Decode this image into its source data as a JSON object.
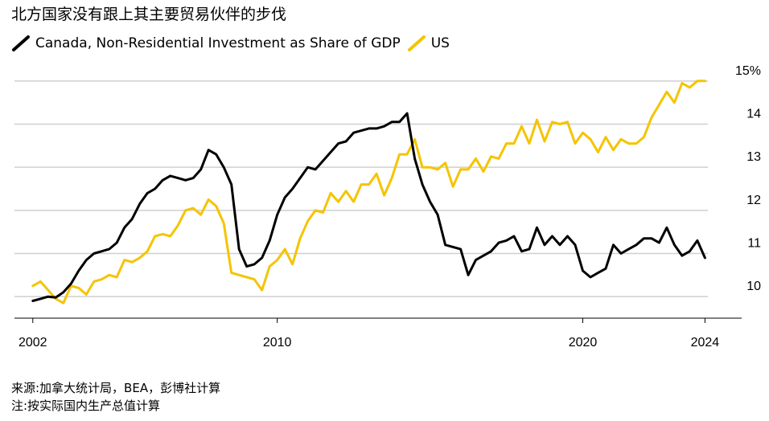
{
  "title": "北方国家没有跟上其主要贸易伙伴的步伐",
  "source": "来源:加拿大统计局，BEA，彭博社计算",
  "note": "注:按实际国内生产总值计算",
  "colors": {
    "canada": "#000000",
    "us": "#f5c400",
    "grid": "#cfcfcf",
    "axis": "#000000"
  },
  "chart_data": {
    "type": "line",
    "ylim": [
      9.5,
      15.5
    ],
    "xlim": [
      2001.4,
      2025.2
    ],
    "y_ticks": [
      {
        "value": 15,
        "label": "15%"
      },
      {
        "value": 14,
        "label": "14"
      },
      {
        "value": 13,
        "label": "13"
      },
      {
        "value": 12,
        "label": "12"
      },
      {
        "value": 11,
        "label": "11"
      },
      {
        "value": 10,
        "label": "10"
      }
    ],
    "x_ticks": [
      {
        "value": 2002,
        "label": "2002"
      },
      {
        "value": 2010,
        "label": "2010"
      },
      {
        "value": 2020,
        "label": "2020"
      },
      {
        "value": 2024,
        "label": "2024"
      }
    ],
    "series": [
      {
        "name": "Canada, Non-Residential Investment as Share of GDP",
        "color": "#000000",
        "x": [
          2002.0,
          2002.25,
          2002.5,
          2002.75,
          2003.0,
          2003.25,
          2003.5,
          2003.75,
          2004.0,
          2004.25,
          2004.5,
          2004.75,
          2005.0,
          2005.25,
          2005.5,
          2005.75,
          2006.0,
          2006.25,
          2006.5,
          2006.75,
          2007.0,
          2007.25,
          2007.5,
          2007.75,
          2008.0,
          2008.25,
          2008.5,
          2008.75,
          2009.0,
          2009.25,
          2009.5,
          2009.75,
          2010.0,
          2010.25,
          2010.5,
          2010.75,
          2011.0,
          2011.25,
          2011.5,
          2011.75,
          2012.0,
          2012.25,
          2012.5,
          2012.75,
          2013.0,
          2013.25,
          2013.5,
          2013.75,
          2014.0,
          2014.25,
          2014.5,
          2014.75,
          2015.0,
          2015.25,
          2015.5,
          2015.75,
          2016.0,
          2016.25,
          2016.5,
          2016.75,
          2017.0,
          2017.25,
          2017.5,
          2017.75,
          2018.0,
          2018.25,
          2018.5,
          2018.75,
          2019.0,
          2019.25,
          2019.5,
          2019.75,
          2020.0,
          2020.25,
          2020.5,
          2020.75,
          2021.0,
          2021.25,
          2021.5,
          2021.75,
          2022.0,
          2022.25,
          2022.5,
          2022.75,
          2023.0,
          2023.25,
          2023.5,
          2023.75,
          2024.0
        ],
        "values": [
          9.9,
          9.95,
          10.0,
          9.98,
          10.1,
          10.3,
          10.6,
          10.85,
          11.0,
          11.05,
          11.1,
          11.25,
          11.6,
          11.8,
          12.15,
          12.4,
          12.5,
          12.7,
          12.8,
          12.75,
          12.7,
          12.75,
          12.95,
          13.4,
          13.3,
          13.0,
          12.6,
          11.1,
          10.7,
          10.75,
          10.9,
          11.3,
          11.9,
          12.3,
          12.5,
          12.75,
          13.0,
          12.95,
          13.15,
          13.35,
          13.55,
          13.6,
          13.8,
          13.85,
          13.9,
          13.9,
          13.95,
          14.05,
          14.05,
          14.25,
          13.2,
          12.6,
          12.2,
          11.9,
          11.2,
          11.15,
          11.1,
          10.5,
          10.85,
          10.95,
          11.05,
          11.25,
          11.3,
          11.4,
          11.05,
          11.1,
          11.6,
          11.2,
          11.4,
          11.2,
          11.4,
          11.2,
          10.6,
          10.45,
          10.55,
          10.65,
          11.2,
          11.0,
          11.1,
          11.2,
          11.35,
          11.35,
          11.25,
          11.6,
          11.2,
          10.95,
          11.05,
          11.3,
          10.9
        ]
      },
      {
        "name": "US",
        "color": "#f5c400",
        "x": [
          2002.0,
          2002.25,
          2002.5,
          2002.75,
          2003.0,
          2003.25,
          2003.5,
          2003.75,
          2004.0,
          2004.25,
          2004.5,
          2004.75,
          2005.0,
          2005.25,
          2005.5,
          2005.75,
          2006.0,
          2006.25,
          2006.5,
          2006.75,
          2007.0,
          2007.25,
          2007.5,
          2007.75,
          2008.0,
          2008.25,
          2008.5,
          2008.75,
          2009.0,
          2009.25,
          2009.5,
          2009.75,
          2010.0,
          2010.25,
          2010.5,
          2010.75,
          2011.0,
          2011.25,
          2011.5,
          2011.75,
          2012.0,
          2012.25,
          2012.5,
          2012.75,
          2013.0,
          2013.25,
          2013.5,
          2013.75,
          2014.0,
          2014.25,
          2014.5,
          2014.75,
          2015.0,
          2015.25,
          2015.5,
          2015.75,
          2016.0,
          2016.25,
          2016.5,
          2016.75,
          2017.0,
          2017.25,
          2017.5,
          2017.75,
          2018.0,
          2018.25,
          2018.5,
          2018.75,
          2019.0,
          2019.25,
          2019.5,
          2019.75,
          2020.0,
          2020.25,
          2020.5,
          2020.75,
          2021.0,
          2021.25,
          2021.5,
          2021.75,
          2022.0,
          2022.25,
          2022.5,
          2022.75,
          2023.0,
          2023.25,
          2023.5,
          2023.75,
          2024.0
        ],
        "values": [
          10.25,
          10.35,
          10.15,
          9.95,
          9.85,
          10.25,
          10.2,
          10.05,
          10.35,
          10.4,
          10.5,
          10.45,
          10.85,
          10.8,
          10.9,
          11.05,
          11.4,
          11.45,
          11.4,
          11.65,
          12.0,
          12.05,
          11.9,
          12.25,
          12.1,
          11.7,
          10.55,
          10.5,
          10.45,
          10.4,
          10.15,
          10.7,
          10.85,
          11.1,
          10.75,
          11.35,
          11.75,
          12.0,
          11.95,
          12.4,
          12.2,
          12.45,
          12.2,
          12.6,
          12.6,
          12.85,
          12.35,
          12.75,
          13.3,
          13.3,
          13.65,
          13.0,
          13.0,
          12.95,
          13.1,
          12.55,
          12.95,
          12.95,
          13.2,
          12.9,
          13.25,
          13.2,
          13.55,
          13.55,
          13.95,
          13.55,
          14.1,
          13.6,
          14.05,
          14.0,
          14.05,
          13.55,
          13.8,
          13.65,
          13.35,
          13.7,
          13.4,
          13.65,
          13.55,
          13.55,
          13.7,
          14.15,
          14.45,
          14.75,
          14.5,
          14.95,
          14.85,
          15.0,
          15.0
        ]
      }
    ]
  }
}
